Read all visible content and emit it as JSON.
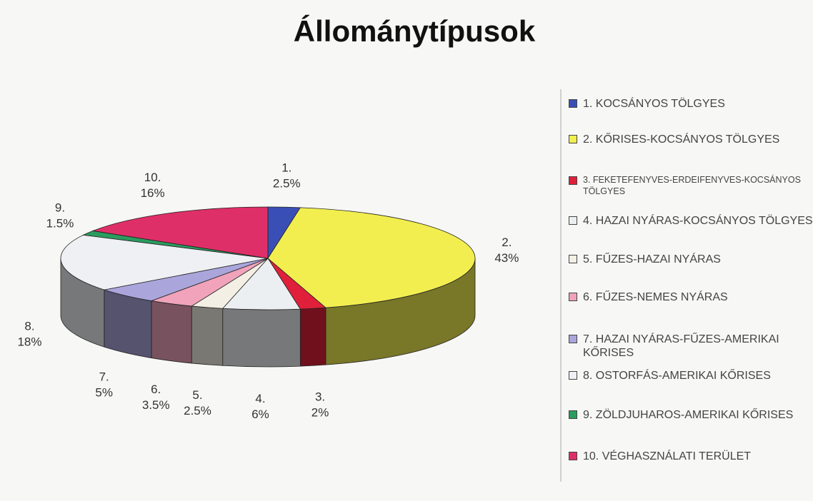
{
  "chart_data": {
    "type": "pie",
    "title": "Állománytípusok",
    "categories": [
      "1. KOCSÁNYOS TÖLGYES",
      "2. KŐRISES-KOCSÁNYOS TÖLGYES",
      "3. FEKETEFENYVES-ERDEIFENYVES-KOCSÁNYOS TÖLGYES",
      "4. HAZAI NYÁRAS-KOCSÁNYOS TÖLGYES",
      "5. FŰZES-HAZAI NYÁRAS",
      "6. FŰZES-NEMES NYÁRAS",
      "7. HAZAI NYÁRAS-FŰZES-AMERIKAI KŐRISES",
      "8. OSTORFÁS-AMERIKAI KŐRISES",
      "9. ZÖLDJUHAROS-AMERIKAI KŐRISES",
      "10. VÉGHASZNÁLATI TERÜLET"
    ],
    "labels": [
      "1.",
      "2.",
      "3.",
      "4.",
      "5.",
      "6.",
      "7.",
      "8.",
      "9.",
      "10."
    ],
    "values": [
      2.5,
      43,
      2,
      6,
      2.5,
      3.5,
      5,
      18,
      1.5,
      16
    ],
    "value_labels": [
      "2.5%",
      "43%",
      "2%",
      "6%",
      "2.5%",
      "3.5%",
      "5%",
      "18%",
      "1.5%",
      "16%"
    ],
    "colors": [
      "#3a4fb5",
      "#f2ee50",
      "#e0203a",
      "#eceff2",
      "#f4efe4",
      "#f0a3bb",
      "#aaa6dc",
      "#eef0f4",
      "#2a9c5e",
      "#df2f68"
    ]
  }
}
